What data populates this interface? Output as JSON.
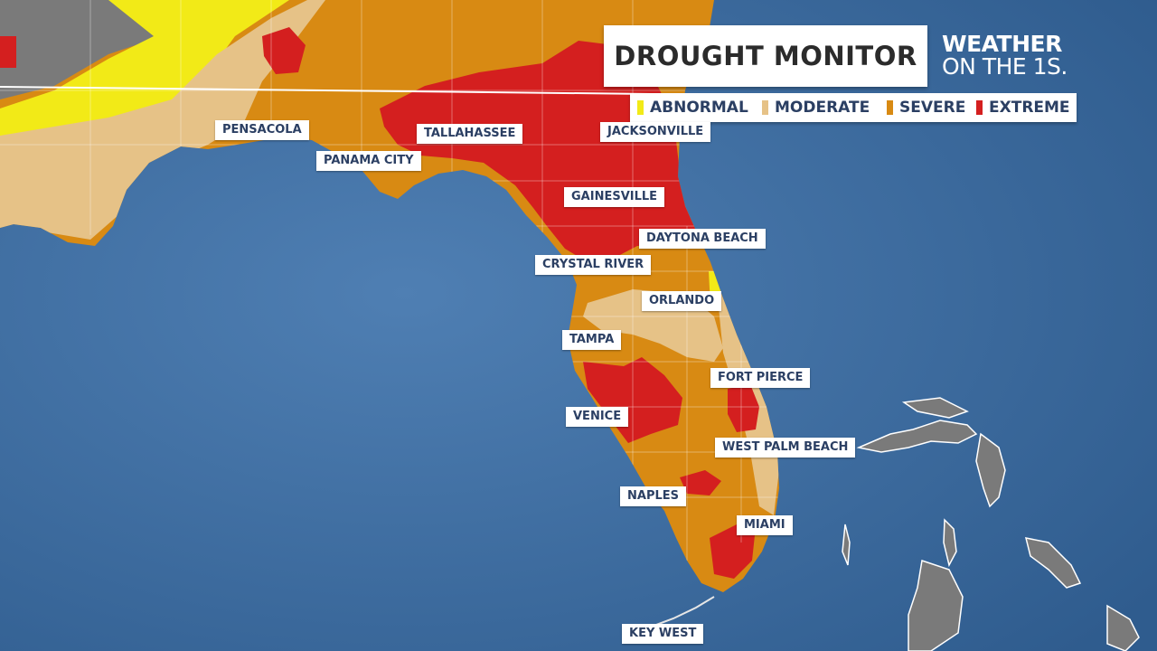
{
  "title": "DROUGHT MONITOR",
  "logo": {
    "line1": "WEATHER",
    "line2": "ON THE 1S."
  },
  "legend": [
    {
      "label": "ABNORMAL",
      "color": "#f2ea17"
    },
    {
      "label": "MODERATE",
      "color": "#e6c287"
    },
    {
      "label": "SEVERE",
      "color": "#d88a13"
    },
    {
      "label": "EXTREME",
      "color": "#d41f1f"
    }
  ],
  "cities": {
    "pensacola": "PENSACOLA",
    "panama_city": "PANAMA CITY",
    "tallahassee": "TALLAHASSEE",
    "jacksonville": "JACKSONVILLE",
    "gainesville": "GAINESVILLE",
    "daytona_beach": "DAYTONA BEACH",
    "crystal_river": "CRYSTAL RIVER",
    "orlando": "ORLANDO",
    "tampa": "TAMPA",
    "fort_pierce": "FORT PIERCE",
    "venice": "VENICE",
    "west_palm_beach": "WEST PALM BEACH",
    "naples": "NAPLES",
    "miami": "MIAMI",
    "key_west": "KEY WEST"
  },
  "colors": {
    "ocean": "#3f6a9a",
    "no_drought": "#7a7a7a",
    "abnormal": "#f2ea17",
    "moderate": "#e6c287",
    "severe": "#d88a13",
    "extreme": "#d41f1f"
  }
}
